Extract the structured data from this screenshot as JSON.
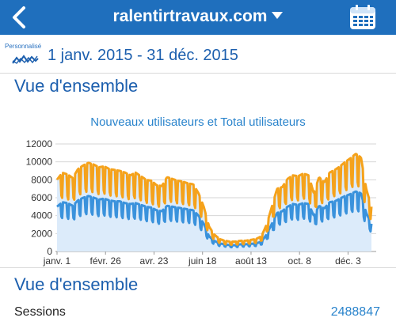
{
  "header": {
    "site_name": "ralentirtravaux.com",
    "bg_color": "#1f6fbd"
  },
  "date_bar": {
    "mode_label": "Personnalisé",
    "range": "1 janv. 2015 - 31 déc. 2015",
    "icon": "trend-line-icon"
  },
  "overview_title": "Vue d'ensemble",
  "overview_title_2": "Vue d'ensemble",
  "metrics": [
    {
      "label": "Sessions",
      "value": "2488847"
    }
  ],
  "chart_data": {
    "type": "area",
    "title": "Nouveaux utilisateurs et Total utilisateurs",
    "ylim": [
      0,
      12000
    ],
    "y_ticks": [
      0,
      2000,
      4000,
      6000,
      8000,
      10000,
      12000
    ],
    "x_ticks": [
      "janv. 1",
      "févr. 26",
      "avr. 23",
      "juin 18",
      "août 13",
      "oct. 8",
      "déc. 3"
    ],
    "x_range": [
      "2015-01-01",
      "2015-12-31"
    ],
    "grid": true,
    "series": [
      {
        "name": "Total utilisateurs",
        "color": "#f5a21b",
        "values": [
          8000,
          8800,
          8600,
          8200,
          9200,
          9600,
          9900,
          9700,
          9400,
          9500,
          9200,
          9100,
          9000,
          8800,
          8500,
          8800,
          8400,
          8000,
          7900,
          7400,
          7300,
          8300,
          8100,
          7900,
          7800,
          7600,
          7500,
          6500,
          5000,
          2800,
          1900,
          1400,
          1200,
          1100,
          1100,
          1200,
          1200,
          1300,
          1400,
          1700,
          3000,
          5000,
          7000,
          7200,
          8100,
          8500,
          8400,
          8700,
          8500,
          6500,
          8300,
          7700,
          8800,
          9100,
          9500,
          10000,
          10400,
          10900,
          10500,
          7000,
          5000
        ]
      },
      {
        "name": "Nouveaux utilisateurs",
        "color": "#3a92dc",
        "values": [
          5000,
          5500,
          5400,
          5100,
          5700,
          6000,
          6200,
          6000,
          5800,
          5900,
          5700,
          5600,
          5600,
          5400,
          5300,
          5400,
          5200,
          5000,
          4900,
          4600,
          4500,
          5100,
          5000,
          4900,
          4800,
          4700,
          4600,
          4000,
          3100,
          1700,
          1200,
          900,
          800,
          700,
          700,
          800,
          800,
          850,
          900,
          1100,
          1900,
          3100,
          4300,
          4500,
          5000,
          5300,
          5200,
          5400,
          5300,
          4000,
          5100,
          4800,
          5500,
          5600,
          5900,
          6200,
          6400,
          6700,
          6500,
          4300,
          3100
        ]
      }
    ]
  }
}
